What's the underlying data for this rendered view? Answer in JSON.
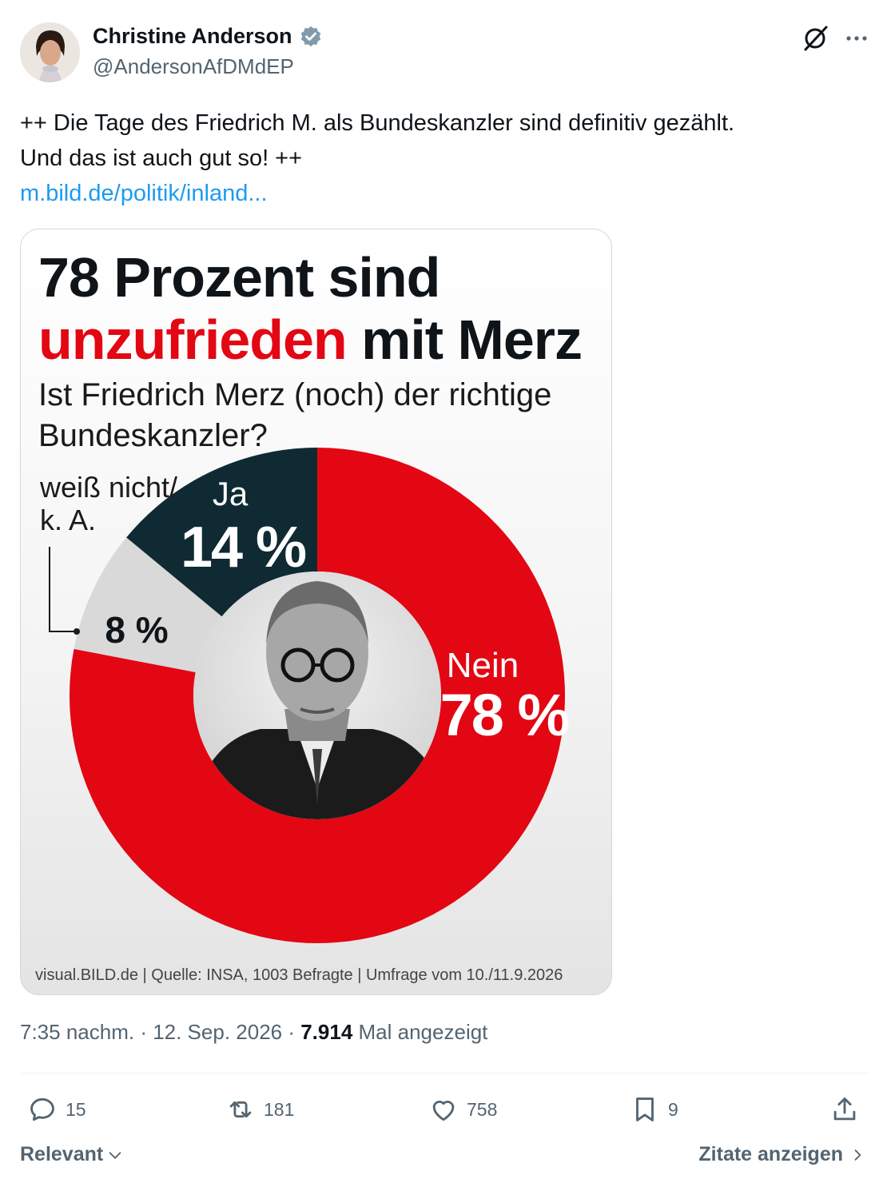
{
  "author": {
    "name": "Christine Anderson",
    "handle": "@AndersonAfDMdEP"
  },
  "tweet": {
    "line1": "++ Die Tage des Friedrich M. als Bundeskanzler sind definitiv gezählt.",
    "line2": "Und das ist auch gut so! ++",
    "link": "m.bild.de/politik/inland..."
  },
  "infographic": {
    "headline_line1": "78 Prozent sind",
    "headline_red": "unzufrieden",
    "headline_rest": " mit Merz",
    "question_line1": "Ist Friedrich Merz (noch) der richtige",
    "question_line2": "Bundeskanzler?",
    "footer": "visual.BILD.de | Quelle: INSA, 1003 Befragte | Umfrage vom 10./11.9.2026",
    "unknown_label_line1": "weiß nicht/",
    "unknown_label_line2": "k. A."
  },
  "chart_data": {
    "type": "pie",
    "style": "donut",
    "categories": [
      "Nein",
      "weiß nicht/ k. A.",
      "Ja"
    ],
    "values": [
      78,
      8,
      14
    ],
    "value_labels": [
      "78 %",
      "8 %",
      "14 %"
    ],
    "colors": [
      "#e30613",
      "#d9d9d9",
      "#0f2a33"
    ]
  },
  "meta": {
    "time": "7:35 nachm. · 12. Sep. 2026 · ",
    "views": "7.914",
    "views_label": " Mal angezeigt"
  },
  "actions": {
    "replies": "15",
    "reposts": "181",
    "likes": "758",
    "bookmarks": "9"
  },
  "footer": {
    "sort_label": "Relevant",
    "quotes_label": "Zitate anzeigen"
  }
}
